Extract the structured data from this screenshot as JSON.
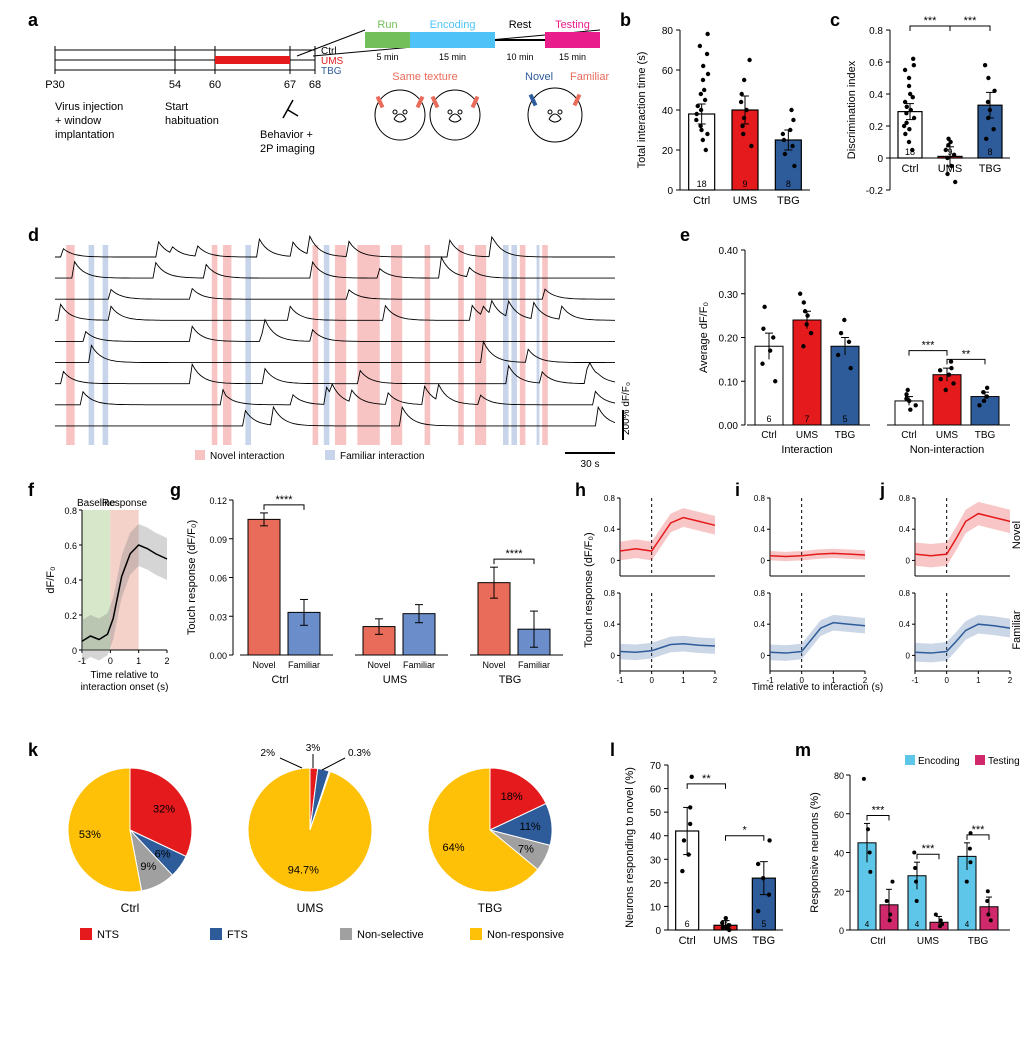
{
  "colors": {
    "ctrl": "#ffffff",
    "ctrl_stroke": "#000000",
    "ums": "#e41a1c",
    "tbg": "#2e5c9a",
    "novel_line": "#e96b5a",
    "familiar_line": "#6b8ecb",
    "green": "#73c05b",
    "cyan": "#4fc3f7",
    "magenta": "#e91e8c",
    "nts": "#e41a1c",
    "fts": "#2e5c9a",
    "nonsel": "#a0a0a0",
    "nonresp": "#ffc107",
    "encoding": "#5ec6e8",
    "testing": "#d0296b",
    "baseline_box": "#d6e8c9",
    "response_box": "#f5d2c9",
    "novel_band": "#f8c3c3",
    "familiar_band": "#c8d4ea"
  },
  "fontsizes": {
    "panel_label": 18,
    "axis": 12,
    "tick": 10,
    "small": 9,
    "annot": 11
  },
  "panel_a": {
    "timeline_labels": [
      "P30",
      "54",
      "60",
      "67",
      "68"
    ],
    "timeline_right": [
      "Ctrl",
      "UMS",
      "TBG"
    ],
    "timeline_right_colors": [
      "#000000",
      "#e41a1c",
      "#2e5c9a"
    ],
    "caption1": "Virus injection",
    "caption1b": "+ window",
    "caption1c": "implantation",
    "caption2": "Start",
    "caption2b": "habituation",
    "caption3": "Behavior +",
    "caption3b": "2P imaging",
    "phase_labels": [
      "Run",
      "Encoding",
      "Rest",
      "Testing"
    ],
    "phase_colors": [
      "#73c05b",
      "#4fc3f7",
      "#000000",
      "#e91e8c"
    ],
    "phase_times": [
      "5 min",
      "15 min",
      "10 min",
      "15 min"
    ],
    "enc_left": "Same texture",
    "test_labels": [
      "Novel",
      "Familiar"
    ],
    "enc_color": "#e96b5a",
    "test_colors": [
      "#2e5c9a",
      "#e96b5a"
    ]
  },
  "panel_b": {
    "ylabel": "Total interaction time (s)",
    "ylim": [
      0,
      80
    ],
    "yticks": [
      0,
      20,
      40,
      60,
      80
    ],
    "cats": [
      "Ctrl",
      "UMS",
      "TBG"
    ],
    "means": [
      38,
      40,
      25
    ],
    "errs": [
      5,
      7,
      5
    ],
    "colors": [
      "#ffffff",
      "#e41a1c",
      "#2e5c9a"
    ],
    "strokes": [
      "#000000",
      "#000000",
      "#000000"
    ],
    "ns": [
      "18",
      "9",
      "8"
    ],
    "points": {
      "Ctrl": [
        20,
        25,
        28,
        30,
        32,
        35,
        38,
        40,
        42,
        45,
        48,
        50,
        55,
        58,
        62,
        68,
        72,
        78
      ],
      "UMS": [
        22,
        28,
        32,
        36,
        40,
        44,
        48,
        55,
        65
      ],
      "TBG": [
        12,
        18,
        22,
        25,
        28,
        30,
        35,
        40
      ]
    }
  },
  "panel_c": {
    "ylabel": "Discrimination index",
    "ylim": [
      -0.2,
      0.8
    ],
    "yticks": [
      -0.2,
      0,
      0.2,
      0.4,
      0.6,
      0.8
    ],
    "cats": [
      "Ctrl",
      "UMS",
      "TBG"
    ],
    "means": [
      0.29,
      0.01,
      0.33
    ],
    "errs": [
      0.05,
      0.06,
      0.08
    ],
    "colors": [
      "#ffffff",
      "#e41a1c",
      "#2e5c9a"
    ],
    "ns": [
      "18",
      "9",
      "8"
    ],
    "sig": [
      [
        "Ctrl",
        "UMS",
        "***"
      ],
      [
        "UMS",
        "TBG",
        "***"
      ]
    ],
    "points": {
      "Ctrl": [
        0.05,
        0.1,
        0.15,
        0.18,
        0.2,
        0.22,
        0.25,
        0.28,
        0.3,
        0.32,
        0.35,
        0.38,
        0.4,
        0.45,
        0.5,
        0.55,
        0.58,
        0.62
      ],
      "UMS": [
        -0.15,
        -0.1,
        -0.05,
        0,
        0.02,
        0.05,
        0.08,
        0.1,
        0.12
      ],
      "TBG": [
        0.12,
        0.18,
        0.25,
        0.3,
        0.35,
        0.42,
        0.5,
        0.58
      ]
    }
  },
  "panel_d": {
    "legend": [
      "Novel interaction",
      "Familiar interaction"
    ],
    "legend_colors": [
      "#f8c3c3",
      "#c8d4ea"
    ],
    "scale_y": "200% dF/F₀",
    "scale_x": "30 s",
    "n_traces": 9,
    "novel_bands": [
      [
        0.02,
        0.035
      ],
      [
        0.28,
        0.29
      ],
      [
        0.3,
        0.315
      ],
      [
        0.46,
        0.47
      ],
      [
        0.5,
        0.52
      ],
      [
        0.54,
        0.58
      ],
      [
        0.6,
        0.62
      ],
      [
        0.66,
        0.67
      ],
      [
        0.72,
        0.73
      ],
      [
        0.75,
        0.77
      ],
      [
        0.83,
        0.84
      ],
      [
        0.87,
        0.88
      ]
    ],
    "familiar_bands": [
      [
        0.06,
        0.07
      ],
      [
        0.085,
        0.095
      ],
      [
        0.34,
        0.35
      ],
      [
        0.48,
        0.49
      ],
      [
        0.8,
        0.81
      ],
      [
        0.815,
        0.825
      ],
      [
        0.86,
        0.865
      ]
    ]
  },
  "panel_e": {
    "ylabel": "Average dF/F₀",
    "ylim": [
      0,
      0.4
    ],
    "yticks": [
      0,
      0.1,
      0.2,
      0.3,
      0.4
    ],
    "groups": [
      "Interaction",
      "Non-interaction"
    ],
    "cats": [
      "Ctrl",
      "UMS",
      "TBG"
    ],
    "means": [
      [
        0.18,
        0.24,
        0.18
      ],
      [
        0.055,
        0.115,
        0.065
      ]
    ],
    "errs": [
      [
        0.03,
        0.02,
        0.02
      ],
      [
        0.01,
        0.015,
        0.01
      ]
    ],
    "colors": [
      "#ffffff",
      "#e41a1c",
      "#2e5c9a"
    ],
    "ns": [
      "6",
      "7",
      "5"
    ],
    "sig_right": [
      [
        "Ctrl",
        "UMS",
        "***"
      ],
      [
        "UMS",
        "TBG",
        "**"
      ]
    ],
    "points": {
      "Interaction": {
        "Ctrl": [
          0.1,
          0.14,
          0.17,
          0.2,
          0.22,
          0.27
        ],
        "UMS": [
          0.18,
          0.21,
          0.23,
          0.25,
          0.26,
          0.28,
          0.3
        ],
        "TBG": [
          0.13,
          0.16,
          0.19,
          0.21,
          0.24
        ]
      },
      "Non-interaction": {
        "Ctrl": [
          0.035,
          0.045,
          0.055,
          0.06,
          0.07,
          0.08
        ],
        "UMS": [
          0.08,
          0.095,
          0.105,
          0.115,
          0.125,
          0.13,
          0.145
        ],
        "TBG": [
          0.045,
          0.055,
          0.065,
          0.075,
          0.085
        ]
      }
    }
  },
  "panel_f": {
    "ylabel": "dF/F₀",
    "xlabel": "Time relative to",
    "xlabel2": "interaction onset (s)",
    "xlim": [
      -1,
      2
    ],
    "ylim": [
      0,
      0.8
    ],
    "xticks": [
      -1,
      0,
      1,
      2
    ],
    "yticks": [
      0,
      0.2,
      0.4,
      0.6,
      0.8
    ],
    "baseline_box": [
      -1,
      0
    ],
    "response_box": [
      0,
      1
    ],
    "baseline_label": "Baseline",
    "response_label": "Response",
    "line": [
      [
        -1,
        0.05
      ],
      [
        -0.7,
        0.08
      ],
      [
        -0.4,
        0.06
      ],
      [
        -0.1,
        0.09
      ],
      [
        0.1,
        0.18
      ],
      [
        0.4,
        0.42
      ],
      [
        0.7,
        0.55
      ],
      [
        1.0,
        0.6
      ],
      [
        1.3,
        0.58
      ],
      [
        1.6,
        0.55
      ],
      [
        2.0,
        0.52
      ]
    ],
    "band": 0.12
  },
  "panel_g": {
    "ylabel": "Touch response (dF/F₀)",
    "ylim": [
      0,
      0.12
    ],
    "yticks": [
      0,
      0.03,
      0.06,
      0.09,
      0.12
    ],
    "groups": [
      "Ctrl",
      "UMS",
      "TBG"
    ],
    "cats": [
      "Novel",
      "Familiar"
    ],
    "means": [
      [
        0.105,
        0.033
      ],
      [
        0.022,
        0.032
      ],
      [
        0.056,
        0.02
      ]
    ],
    "errs": [
      [
        0.005,
        0.01
      ],
      [
        0.006,
        0.007
      ],
      [
        0.012,
        0.014
      ]
    ],
    "colors": [
      "#e96b5a",
      "#6b8ecb"
    ],
    "sig": [
      [
        "Ctrl",
        "****"
      ],
      [
        "TBG",
        "****"
      ]
    ]
  },
  "panels_hij": {
    "ylabel": "Touch response (dF/F₀)",
    "xlabel": "Time relative to interaction (s)",
    "xlim": [
      -1,
      2
    ],
    "ylim": [
      -0.2,
      0.8
    ],
    "xticks": [
      -1,
      0,
      1,
      2
    ],
    "yticks": [
      0,
      0.4,
      0.8
    ],
    "row_labels": [
      "Novel",
      "Familiar"
    ],
    "row_colors": [
      "#e41a1c",
      "#2e5c9a"
    ],
    "series": {
      "h_novel": {
        "line": [
          [
            -1,
            0.12
          ],
          [
            -0.5,
            0.15
          ],
          [
            0,
            0.12
          ],
          [
            0.3,
            0.3
          ],
          [
            0.6,
            0.48
          ],
          [
            1.0,
            0.55
          ],
          [
            1.5,
            0.5
          ],
          [
            2,
            0.45
          ]
        ],
        "band": 0.12,
        "color": "#e41a1c"
      },
      "h_familiar": {
        "line": [
          [
            -1,
            0.05
          ],
          [
            -0.5,
            0.04
          ],
          [
            0,
            0.06
          ],
          [
            0.3,
            0.1
          ],
          [
            0.6,
            0.14
          ],
          [
            1.0,
            0.15
          ],
          [
            1.5,
            0.13
          ],
          [
            2,
            0.12
          ]
        ],
        "band": 0.1,
        "color": "#2e5c9a"
      },
      "i_novel": {
        "line": [
          [
            -1,
            0.06
          ],
          [
            -0.5,
            0.05
          ],
          [
            0,
            0.06
          ],
          [
            0.5,
            0.08
          ],
          [
            1,
            0.09
          ],
          [
            1.5,
            0.08
          ],
          [
            2,
            0.07
          ]
        ],
        "band": 0.06,
        "color": "#e41a1c"
      },
      "i_familiar": {
        "line": [
          [
            -1,
            0.04
          ],
          [
            -0.5,
            0.03
          ],
          [
            0,
            0.05
          ],
          [
            0.3,
            0.2
          ],
          [
            0.6,
            0.35
          ],
          [
            1,
            0.42
          ],
          [
            1.5,
            0.4
          ],
          [
            2,
            0.38
          ]
        ],
        "band": 0.1,
        "color": "#2e5c9a"
      },
      "j_novel": {
        "line": [
          [
            -1,
            0.08
          ],
          [
            -0.5,
            0.06
          ],
          [
            0,
            0.08
          ],
          [
            0.3,
            0.28
          ],
          [
            0.6,
            0.5
          ],
          [
            1,
            0.6
          ],
          [
            1.5,
            0.55
          ],
          [
            2,
            0.5
          ]
        ],
        "band": 0.15,
        "color": "#e41a1c"
      },
      "j_familiar": {
        "line": [
          [
            -1,
            0.04
          ],
          [
            -0.5,
            0.03
          ],
          [
            0,
            0.05
          ],
          [
            0.3,
            0.18
          ],
          [
            0.6,
            0.32
          ],
          [
            1,
            0.4
          ],
          [
            1.5,
            0.38
          ],
          [
            2,
            0.35
          ]
        ],
        "band": 0.12,
        "color": "#2e5c9a"
      }
    }
  },
  "panel_k": {
    "groups": [
      "Ctrl",
      "UMS",
      "TBG"
    ],
    "labels": [
      "NTS",
      "FTS",
      "Non-selective",
      "Non-responsive"
    ],
    "colors": [
      "#e41a1c",
      "#2e5c9a",
      "#a0a0a0",
      "#ffc107"
    ],
    "data": {
      "Ctrl": [
        32,
        6,
        9,
        53
      ],
      "UMS": [
        2,
        3,
        0.3,
        94.7
      ],
      "TBG": [
        18,
        11,
        7,
        64
      ]
    },
    "ums_annot": [
      "2%",
      "3%",
      "0.3%"
    ]
  },
  "panel_l": {
    "ylabel": "Neurons responding to novel (%)",
    "ylim": [
      0,
      70
    ],
    "yticks": [
      0,
      10,
      20,
      30,
      40,
      50,
      60,
      70
    ],
    "cats": [
      "Ctrl",
      "UMS",
      "TBG"
    ],
    "means": [
      42,
      2,
      22
    ],
    "errs": [
      10,
      2,
      7
    ],
    "colors": [
      "#ffffff",
      "#e41a1c",
      "#2e5c9a"
    ],
    "ns": [
      "6",
      "7",
      "5"
    ],
    "sig": [
      [
        "Ctrl",
        "UMS",
        "**"
      ],
      [
        "UMS",
        "TBG",
        "*"
      ]
    ],
    "points": {
      "Ctrl": [
        25,
        32,
        38,
        45,
        52,
        65
      ],
      "UMS": [
        0,
        1,
        1,
        2,
        2,
        3,
        5
      ],
      "TBG": [
        8,
        15,
        22,
        28,
        38
      ]
    }
  },
  "panel_m": {
    "ylabel": "Responsive neurons (%)",
    "ylim": [
      0,
      80
    ],
    "yticks": [
      0,
      20,
      40,
      60,
      80
    ],
    "groups": [
      "Ctrl",
      "UMS",
      "TBG"
    ],
    "cats": [
      "Encoding",
      "Testing"
    ],
    "means": [
      [
        45,
        13
      ],
      [
        28,
        4
      ],
      [
        38,
        12
      ]
    ],
    "errs": [
      [
        10,
        8
      ],
      [
        7,
        3
      ],
      [
        7,
        5
      ]
    ],
    "colors": [
      "#5ec6e8",
      "#d0296b"
    ],
    "sig": [
      [
        "Ctrl",
        "***"
      ],
      [
        "UMS",
        "***"
      ],
      [
        "TBG",
        "***"
      ]
    ],
    "ns": [
      "4",
      "4",
      "4"
    ],
    "points": {
      "Ctrl": {
        "Encoding": [
          30,
          40,
          52,
          78
        ],
        "Testing": [
          5,
          8,
          15,
          25
        ]
      },
      "UMS": {
        "Encoding": [
          15,
          25,
          32,
          40
        ],
        "Testing": [
          2,
          3,
          5,
          8
        ]
      },
      "TBG": {
        "Encoding": [
          25,
          35,
          42,
          50
        ],
        "Testing": [
          5,
          8,
          15,
          20
        ]
      }
    }
  }
}
